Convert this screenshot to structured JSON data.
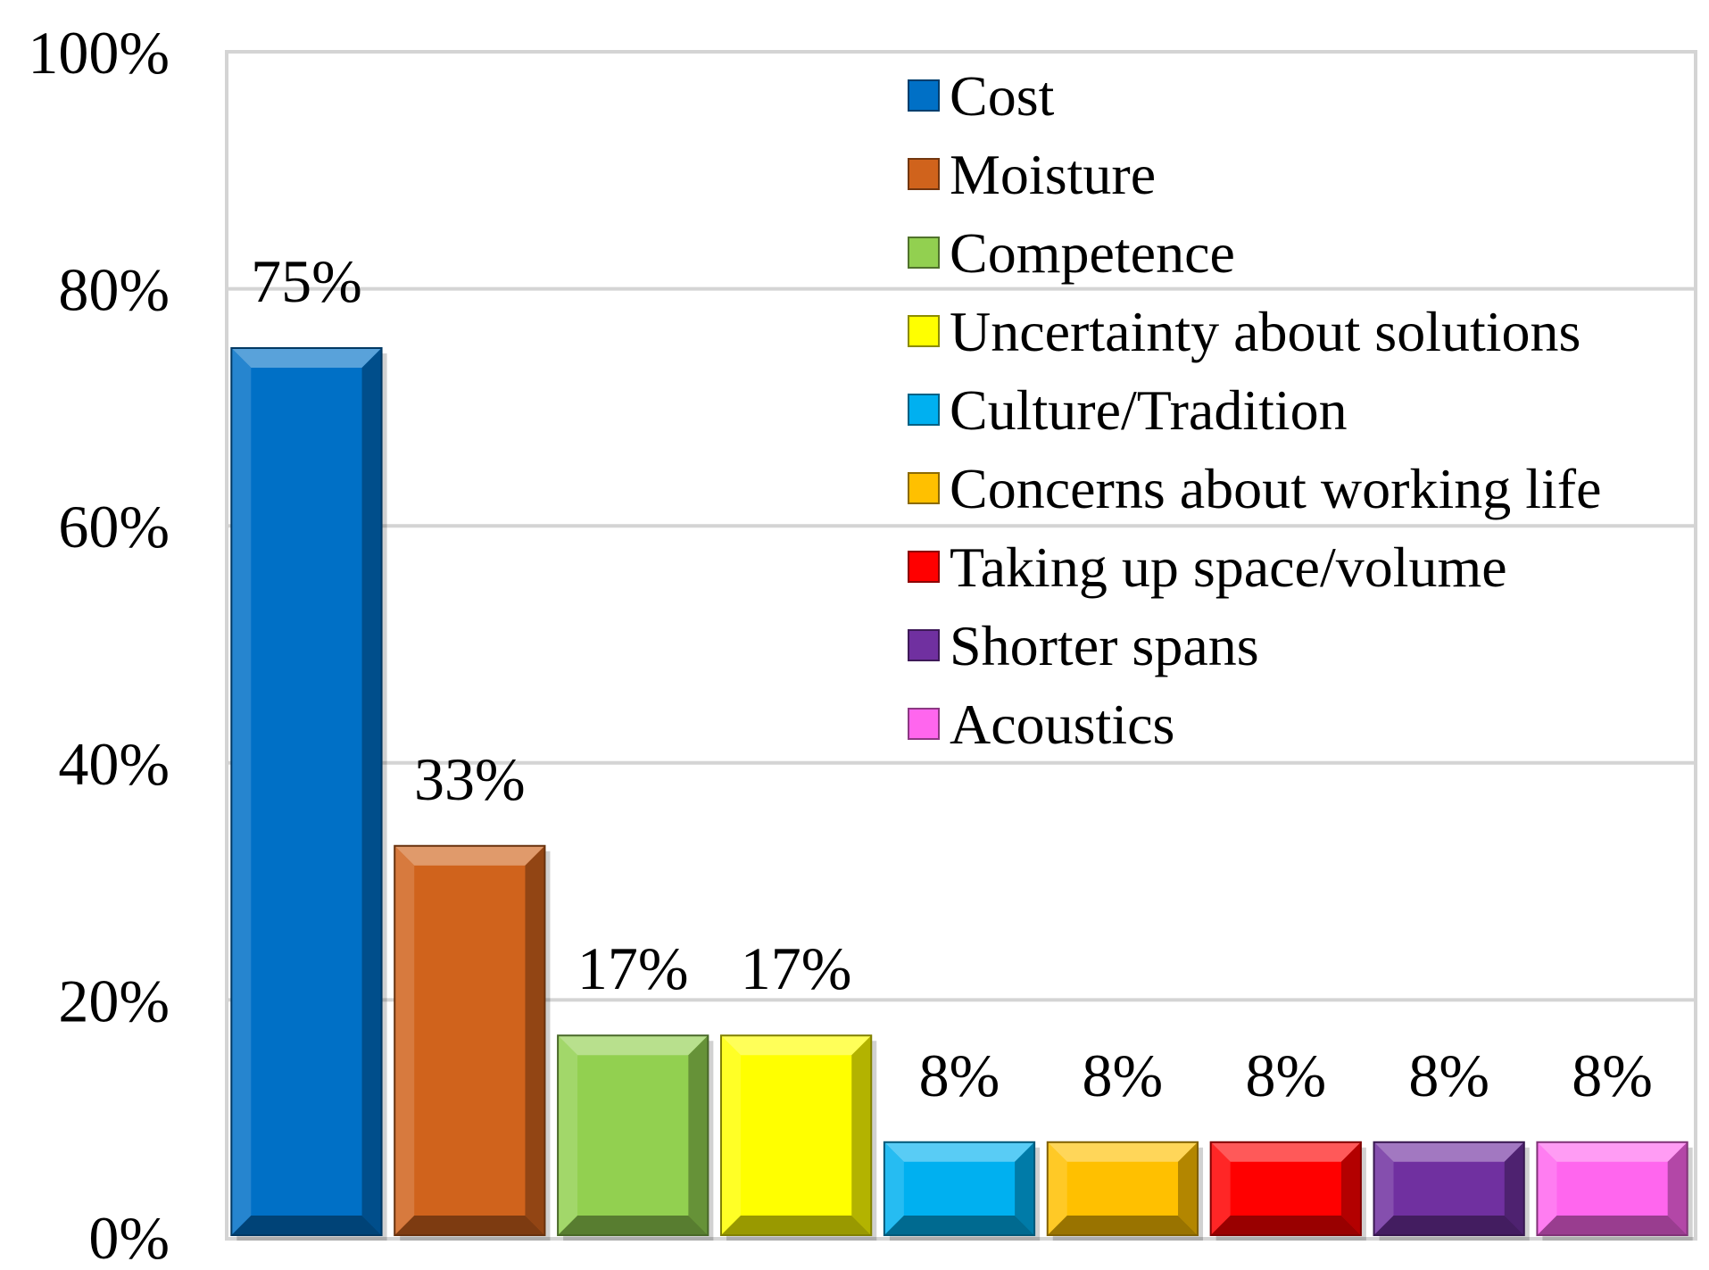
{
  "chart_data": {
    "type": "bar",
    "title": "",
    "xlabel": "",
    "ylabel": "",
    "ylim": [
      0,
      100
    ],
    "y_ticks": [
      "0%",
      "20%",
      "40%",
      "60%",
      "80%",
      "100%"
    ],
    "y_tick_values": [
      0,
      20,
      40,
      60,
      80,
      100
    ],
    "grid": true,
    "legend_position": "top-right",
    "categories": [
      "Cost",
      "Moisture",
      "Competence",
      "Uncertainty about solutions",
      "Culture/Tradition",
      "Concerns about working life",
      "Taking up space/volume",
      "Shorter spans",
      "Acoustics"
    ],
    "values": [
      75,
      33,
      17,
      17,
      8,
      8,
      8,
      8,
      8
    ],
    "data_labels": [
      "75%",
      "33%",
      "17%",
      "17%",
      "8%",
      "8%",
      "8%",
      "8%",
      "8%"
    ],
    "colors": [
      "#0070C6",
      "#D0631C",
      "#92D050",
      "#FFFF00",
      "#00B0F0",
      "#FFC000",
      "#FF0000",
      "#7030A0",
      "#FF66EE"
    ]
  }
}
